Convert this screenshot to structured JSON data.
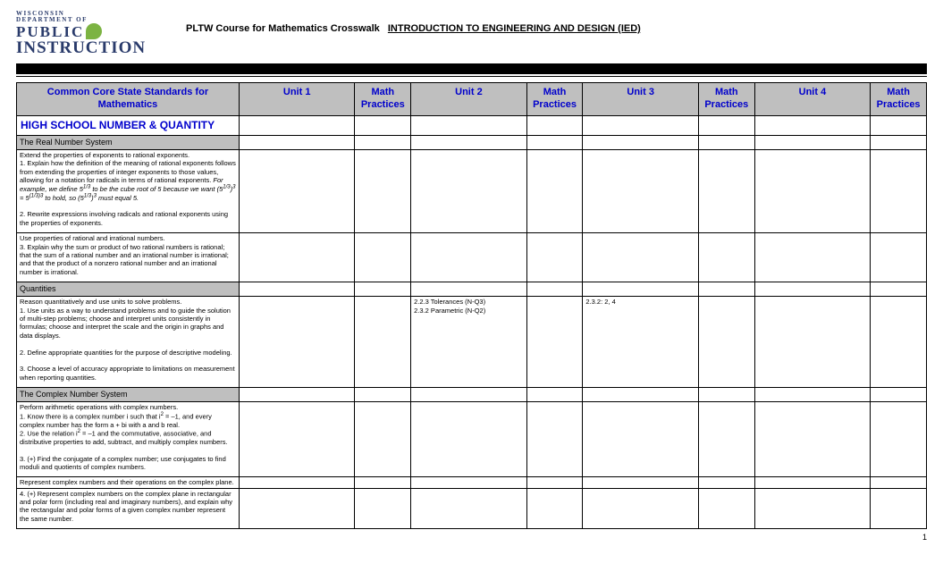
{
  "logo": {
    "line1": "WISCONSIN",
    "line2": "DEPARTMENT OF",
    "line3": "PUBLIC",
    "line4": "INSTRUCTION"
  },
  "title": {
    "left": "PLTW Course for Mathematics Crosswalk",
    "right": "INTRODUCTION TO ENGINEERING AND DESIGN (IED)"
  },
  "headers": {
    "desc": "Common Core State Standards for Mathematics",
    "unit1": "Unit 1",
    "unit2": "Unit 2",
    "unit3": "Unit 3",
    "unit4": "Unit 4",
    "prac": "Math Practices"
  },
  "sections": {
    "hs_num_qty": "HIGH SCHOOL NUMBER & QUANTITY",
    "real_num": "The Real Number System",
    "quantities": "Quantities",
    "complex": "The Complex Number System"
  },
  "rows": {
    "r1_a": "Extend the properties of exponents to rational exponents.",
    "r1_b1": "1. Explain how the definition of the meaning of rational exponents follows from extending the properties of integer exponents to those values, allowing for a notation for radicals in terms of rational exponents. ",
    "r1_b2_pre": "For example, we define 5",
    "r1_b2_mid": " to be the cube root of 5 because we want (5",
    "r1_b2_mid2": ")",
    "r1_b2_mid3": " = 5",
    "r1_b2_mid4": " to hold, so (5",
    "r1_b2_mid5": ")",
    "r1_b2_end": " must equal 5.",
    "r1_c": "2. Rewrite expressions involving radicals and rational exponents using the properties of exponents.",
    "r2_a": "Use properties of rational and irrational numbers.",
    "r2_b": "3. Explain why the sum or product of two rational numbers is rational; that the sum of a rational number and an irrational number is irrational; and that the product of a nonzero rational number and an irrational number is irrational.",
    "r3_a": "Reason quantitatively and use units to solve problems.",
    "r3_b": "1. Use units as a way to understand problems and to guide the solution of multi-step problems; choose and interpret units consistently in formulas; choose and interpret the scale and the origin in graphs and data displays.",
    "r3_c": "2. Define appropriate quantities for the purpose of descriptive modeling.",
    "r3_d": "3. Choose a level of accuracy appropriate to limitations on measurement when reporting quantities.",
    "r3_u2a": "2.2.3 Tolerances (N-Q3)",
    "r3_u2b": "2.3.2 Parametric (N-Q2)",
    "r3_u3": "2.3.2: 2, 4",
    "r4_a": "Perform arithmetic operations with complex numbers.",
    "r4_b_pre": "1. Know there is a complex number i such that i",
    "r4_b_mid": " = –1, and every complex number has the form a + bi with a and b real.",
    "r4_c_pre": "2. Use the relation i",
    "r4_c_mid": " = –1 and the commutative, associative, and distributive properties to add, subtract, and multiply complex numbers.",
    "r4_d": "3. (+) Find the conjugate of a complex number; use conjugates to find moduli and quotients of complex numbers.",
    "r5_a": "Represent complex numbers and their operations on the complex plane.",
    "r5_b": "4. (+) Represent complex numbers on the complex plane in rectangular and polar form (including real and imaginary numbers), and explain why the rectangular and polar forms of a given complex number represent the same number."
  },
  "page": "1"
}
